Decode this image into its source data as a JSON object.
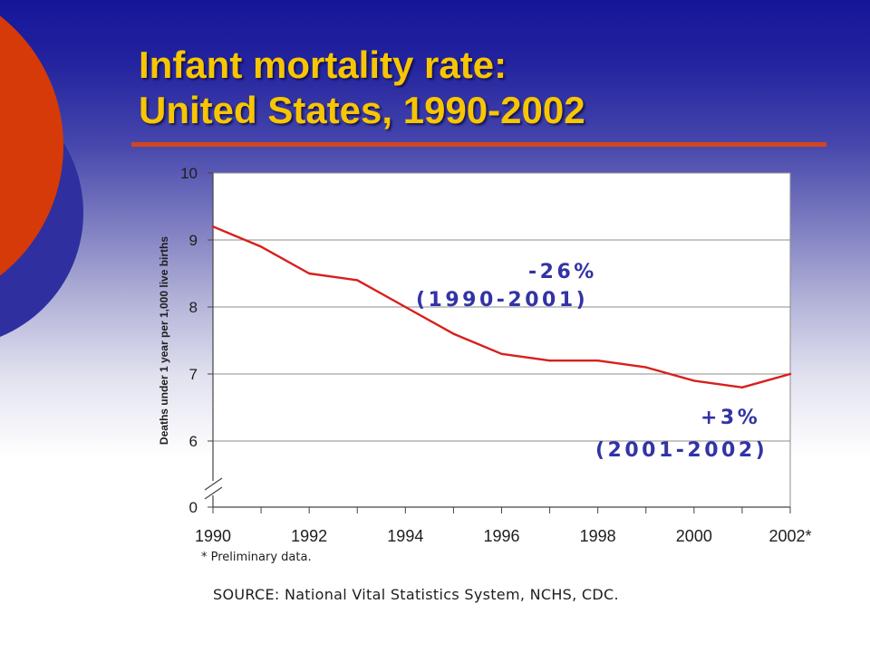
{
  "title": {
    "line1": "Infant mortality rate:",
    "line2": "United States, 1990-2002"
  },
  "colors": {
    "title_text": "#f7c600",
    "title_rule": "#d2451e",
    "decor_circle_red": "#d63a08",
    "decor_circle_blue": "#2f2fa0",
    "series_line": "#d81f1c",
    "annotation_text": "#3333a6",
    "gridline": "#8c8c8c"
  },
  "chart_data": {
    "type": "line",
    "ylabel": "Deaths under 1 year per 1,000 live births",
    "x": [
      1990,
      1991,
      1992,
      1993,
      1994,
      1995,
      1996,
      1997,
      1998,
      1999,
      2000,
      2001,
      2002
    ],
    "series": [
      {
        "values": [
          9.2,
          8.9,
          8.5,
          8.4,
          8.0,
          7.6,
          7.3,
          7.2,
          7.2,
          7.1,
          6.9,
          6.8,
          7.0
        ]
      }
    ],
    "ylim": [
      6,
      10
    ],
    "y_axis_break": true,
    "y_ticks": [
      10,
      9,
      8,
      7,
      6
    ],
    "y_break_label": "0",
    "x_tick_labels": [
      "1990",
      "1992",
      "1994",
      "1996",
      "1998",
      "2000",
      "2002*"
    ],
    "grid": true,
    "annotations": [
      "-26%",
      "(1990-2001)",
      "+3%",
      "(2001-2002)"
    ]
  },
  "footnote": "* Preliminary data.",
  "source": "SOURCE: National Vital Statistics System, NCHS, CDC."
}
